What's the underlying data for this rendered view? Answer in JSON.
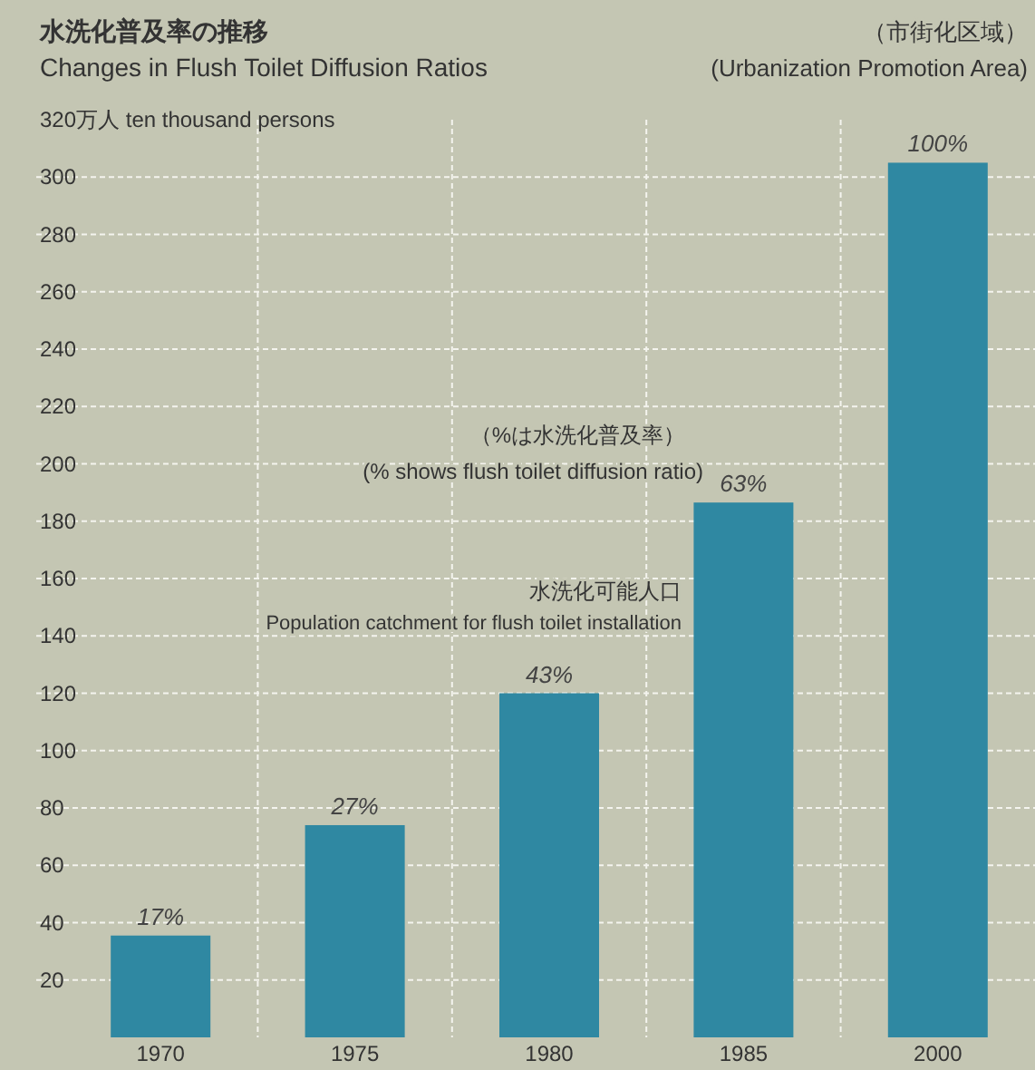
{
  "chart_data": {
    "type": "bar",
    "title": "水洗化普及率の推移",
    "subtitle": "Changes in Flush Toilet Diffusion Ratios",
    "ylabel": "320万人  ten thousand persons",
    "categories": [
      "1970",
      "1975",
      "1980",
      "1985",
      "2000"
    ],
    "series": [
      {
        "color": "#2f88a2",
        "values": [
          35.5,
          74,
          120,
          186.5,
          305
        ]
      }
    ],
    "ylim": [
      0,
      320
    ],
    "yticks": [
      20,
      40,
      60,
      80,
      100,
      120,
      140,
      160,
      180,
      200,
      220,
      240,
      260,
      280,
      300
    ],
    "grid": true,
    "annotations": [
      "（市街化区域）",
      "(Urbanization Promotion Area)",
      "（%は水洗化普及率）",
      "(% shows flush toilet diffusion ratio)",
      "水洗化可能人口",
      "Population catchment for flush toilet installation",
      {
        "text": "17%",
        "x": "1970",
        "y": 35.5
      },
      {
        "text": "27%",
        "x": "1975",
        "y": 74
      },
      {
        "text": "43%",
        "x": "1980",
        "y": 120
      },
      {
        "text": "63%",
        "x": "1985",
        "y": 186.5
      },
      {
        "text": "100%",
        "x": "2000",
        "y": 305
      }
    ]
  }
}
